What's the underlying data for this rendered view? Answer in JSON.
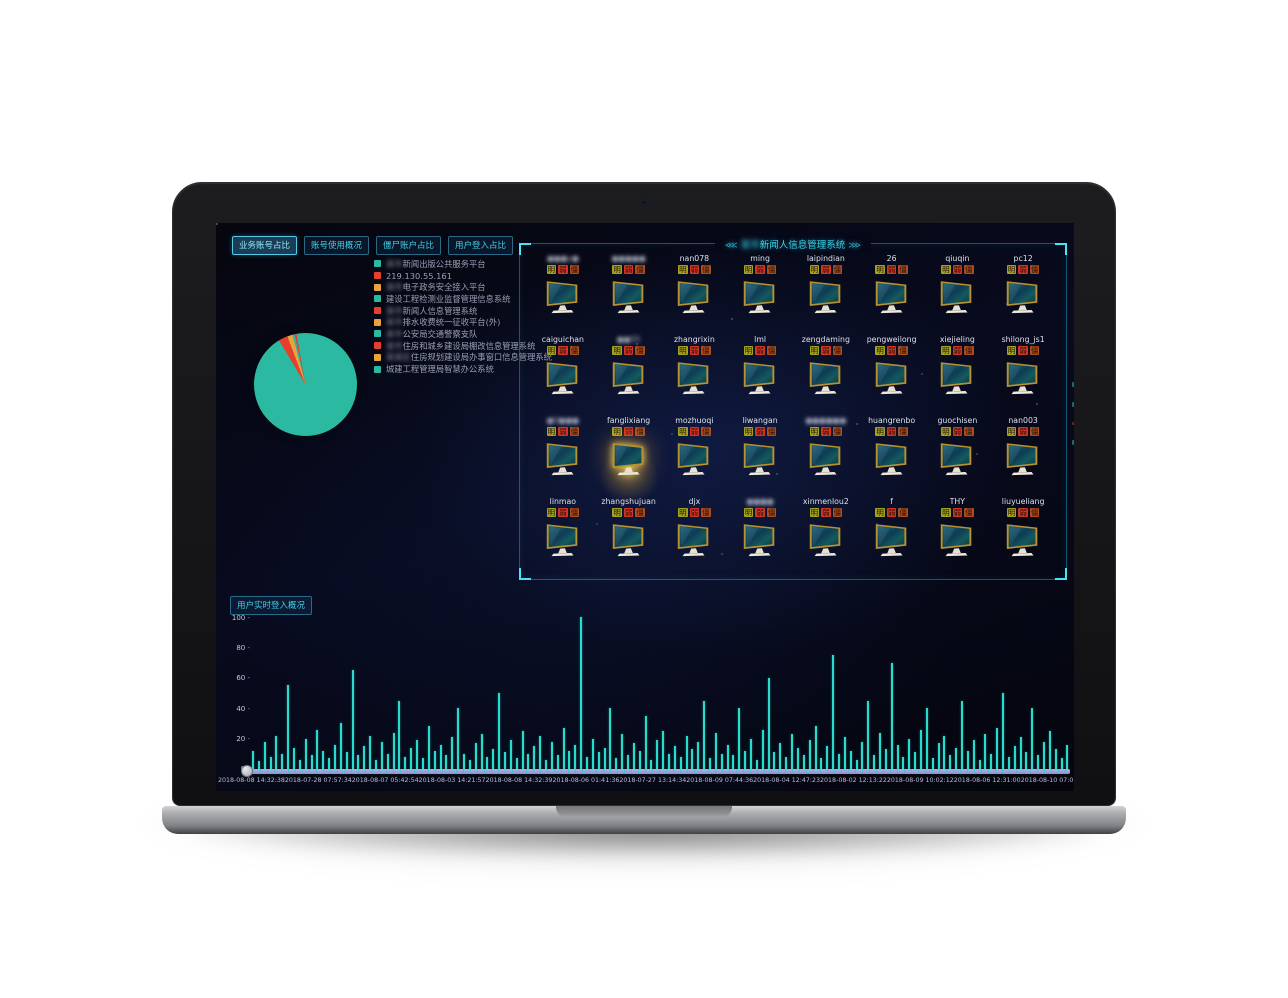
{
  "dashboard": {
    "tabs": [
      {
        "label": "业务账号占比",
        "active": true
      },
      {
        "label": "账号使用概况",
        "active": false
      },
      {
        "label": "僵尸账户占比",
        "active": false
      },
      {
        "label": "用户登入占比",
        "active": false
      }
    ],
    "legend": {
      "items": [
        {
          "color": "#2cb9a2",
          "blur": "某市",
          "label": "新闻出版公共服务平台"
        },
        {
          "color": "#e5402e",
          "blur": "",
          "label": "219.130.55.161"
        },
        {
          "color": "#e8a33d",
          "blur": "某市",
          "label": "电子政务安全接入平台"
        },
        {
          "color": "#2cb9a2",
          "blur": "",
          "label": "建设工程检测业监督管理信息系统"
        },
        {
          "color": "#e5402e",
          "blur": "某市",
          "label": "新闻人信息管理系统"
        },
        {
          "color": "#e8a33d",
          "blur": "某市",
          "label": "排水收费统一征收平台(外)"
        },
        {
          "color": "#2cb9a2",
          "blur": "某市",
          "label": "公安局交通警察支队"
        },
        {
          "color": "#e5402e",
          "blur": "某市",
          "label": "住房和城乡建设局棚改信息管理系统"
        },
        {
          "color": "#e8a33d",
          "blur": "某某区",
          "label": "住房规划建设局办事窗口信息管理系统"
        },
        {
          "color": "#2cb9a2",
          "blur": "",
          "label": "城建工程管理局智慧办公系统"
        }
      ]
    },
    "grid": {
      "title": {
        "left_arrows": "⋘",
        "blur": "某市",
        "label": "新闻人信息管理系统",
        "right_arrows": "⋙"
      },
      "badges": [
        {
          "label": "明",
          "bg": "#a3a322"
        },
        {
          "label": "弱",
          "bg": "#d23426"
        },
        {
          "label": "僵",
          "bg": "#b04d1e"
        }
      ],
      "users": [
        {
          "name": "●●●y●",
          "blur": true
        },
        {
          "name": "●●●●●",
          "blur": true
        },
        {
          "name": "nan078"
        },
        {
          "name": "ming"
        },
        {
          "name": "laipindian"
        },
        {
          "name": "26"
        },
        {
          "name": "qiuqin"
        },
        {
          "name": "pc12"
        },
        {
          "name": "caiguichan"
        },
        {
          "name": "●●55",
          "blur": true
        },
        {
          "name": "zhangrixin"
        },
        {
          "name": "lml"
        },
        {
          "name": "zengdaming"
        },
        {
          "name": "pengweilong"
        },
        {
          "name": "xiejieling"
        },
        {
          "name": "shilong_js1"
        },
        {
          "name": "●0●●●",
          "blur": true
        },
        {
          "name": "fanglixiang",
          "highlight": true
        },
        {
          "name": "mozhuoqi"
        },
        {
          "name": "liwangan"
        },
        {
          "name": "●●●●●●",
          "blur": true
        },
        {
          "name": "huangrenbo"
        },
        {
          "name": "guochisen"
        },
        {
          "name": "nan003"
        },
        {
          "name": "linmao"
        },
        {
          "name": "zhangshujuan"
        },
        {
          "name": "djx"
        },
        {
          "name": "●●●●",
          "blur": true
        },
        {
          "name": "xinmenlou2"
        },
        {
          "name": "f"
        },
        {
          "name": "THY"
        },
        {
          "name": "liuyueliang"
        }
      ]
    },
    "login_chart_label": "用户实时登入概况"
  },
  "chart_data": [
    {
      "type": "pie",
      "title": "业务账号占比",
      "start_angle": 329,
      "legend_position": "left-list",
      "slices": [
        {
          "color": "#e5402e",
          "value": 2.9
        },
        {
          "color": "#e8a33d",
          "value": 1.6
        },
        {
          "color": "#2cb9a2",
          "value": 0.7
        },
        {
          "color": "#e5402e",
          "value": 0.6
        },
        {
          "color": "#2cb9a2",
          "value": 94.2
        }
      ]
    },
    {
      "type": "bar",
      "title": "用户实时登入概况",
      "xlabel": "",
      "ylabel": "",
      "ylim": [
        0,
        100
      ],
      "yticks": [
        0,
        20,
        40,
        60,
        80,
        100
      ],
      "grid": false,
      "bar_color": "#28dccd",
      "x_labels": [
        "2018-08-08 14:32:38",
        "2018-07-28 07:57:34",
        "2018-08-07 05:42:54",
        "2018-08-03 14:21:57",
        "2018-08-08 14:32:39",
        "2018-08-06 01:41:36",
        "2018-07-27 13:14:34",
        "2018-08-09 07:44:36",
        "2018-08-04 12:47:23",
        "2018-08-02 12:13:22",
        "2018-08-09 10:02:12",
        "2018-08-06 12:31:00",
        "2018-08-10 07:01:26"
      ],
      "values": [
        12,
        5,
        18,
        8,
        22,
        10,
        55,
        14,
        6,
        20,
        9,
        26,
        12,
        7,
        16,
        30,
        11,
        65,
        9,
        15,
        22,
        6,
        18,
        10,
        24,
        45,
        8,
        14,
        19,
        7,
        28,
        12,
        16,
        9,
        21,
        40,
        10,
        6,
        17,
        23,
        8,
        13,
        50,
        11,
        19,
        7,
        25,
        10,
        15,
        22,
        6,
        18,
        9,
        27,
        12,
        16,
        100,
        8,
        20,
        11,
        14,
        40,
        7,
        23,
        9,
        17,
        12,
        35,
        6,
        19,
        25,
        10,
        15,
        8,
        22,
        13,
        18,
        45,
        7,
        24,
        10,
        16,
        9,
        40,
        12,
        20,
        6,
        26,
        60,
        11,
        17,
        8,
        23,
        14,
        9,
        19,
        28,
        7,
        15,
        75,
        10,
        21,
        12,
        6,
        18,
        45,
        9,
        24,
        13,
        70,
        16,
        8,
        20,
        11,
        26,
        40,
        7,
        17,
        22,
        9,
        14,
        45,
        12,
        19,
        6,
        23,
        10,
        27,
        50,
        8,
        15,
        21,
        11,
        40,
        9,
        18,
        25,
        13,
        7,
        16
      ]
    }
  ]
}
